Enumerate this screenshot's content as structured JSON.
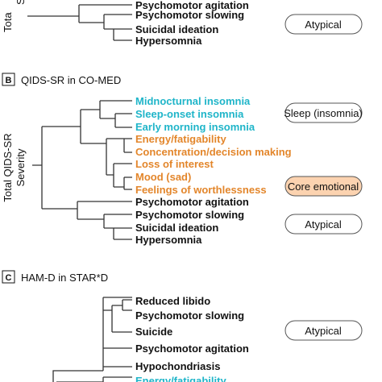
{
  "panel_a": {
    "axis_label_fragment": "Tota",
    "axis_label_fragment2": "S",
    "items": [
      {
        "label": "Psychomotor agitation",
        "color": "#111111"
      },
      {
        "label": "Psychomotor slowing",
        "color": "#111111"
      },
      {
        "label": "Suicidal ideation",
        "color": "#111111"
      },
      {
        "label": "Hypersomnia",
        "color": "#111111"
      }
    ],
    "badge": "Atypical"
  },
  "panel_b": {
    "letter": "B",
    "title": "QIDS-SR in CO-MED",
    "axis_label_line1": "Total QIDS-SR",
    "axis_label_line2": "Severity",
    "items_cyan": [
      "Midnocturnal insomnia",
      "Sleep-onset insomnia",
      "Early morning insomnia"
    ],
    "items_orange": [
      "Energy/fatigability",
      "Concentration/decision making",
      "Loss of interest",
      "Mood (sad)",
      "Feelings of worthlessness"
    ],
    "items_black": [
      "Psychomotor agitation",
      "Psychomotor slowing",
      "Suicidal ideation",
      "Hypersomnia"
    ],
    "badges": [
      {
        "label": "Sleep (insomnia)",
        "fill": "#ffffff"
      },
      {
        "label": "Core emotional",
        "fill": "#fcd3b0"
      },
      {
        "label": "Atypical",
        "fill": "#ffffff"
      }
    ]
  },
  "panel_c": {
    "letter": "C",
    "title": "HAM-D in STAR*D",
    "items": [
      {
        "label": "Reduced libido",
        "color": "#111111"
      },
      {
        "label": "Psychomotor slowing",
        "color": "#111111"
      },
      {
        "label": "Suicide",
        "color": "#111111"
      },
      {
        "label": "Psychomotor agitation",
        "color": "#111111"
      },
      {
        "label": "Hypochondriasis",
        "color": "#111111"
      },
      {
        "label": "Energy/fatigability",
        "color": "#1fb5c9"
      }
    ],
    "badge": "Atypical"
  },
  "colors": {
    "cyan": "#1fb5c9",
    "orange": "#e3862b",
    "core_fill": "#fcd3b0"
  }
}
